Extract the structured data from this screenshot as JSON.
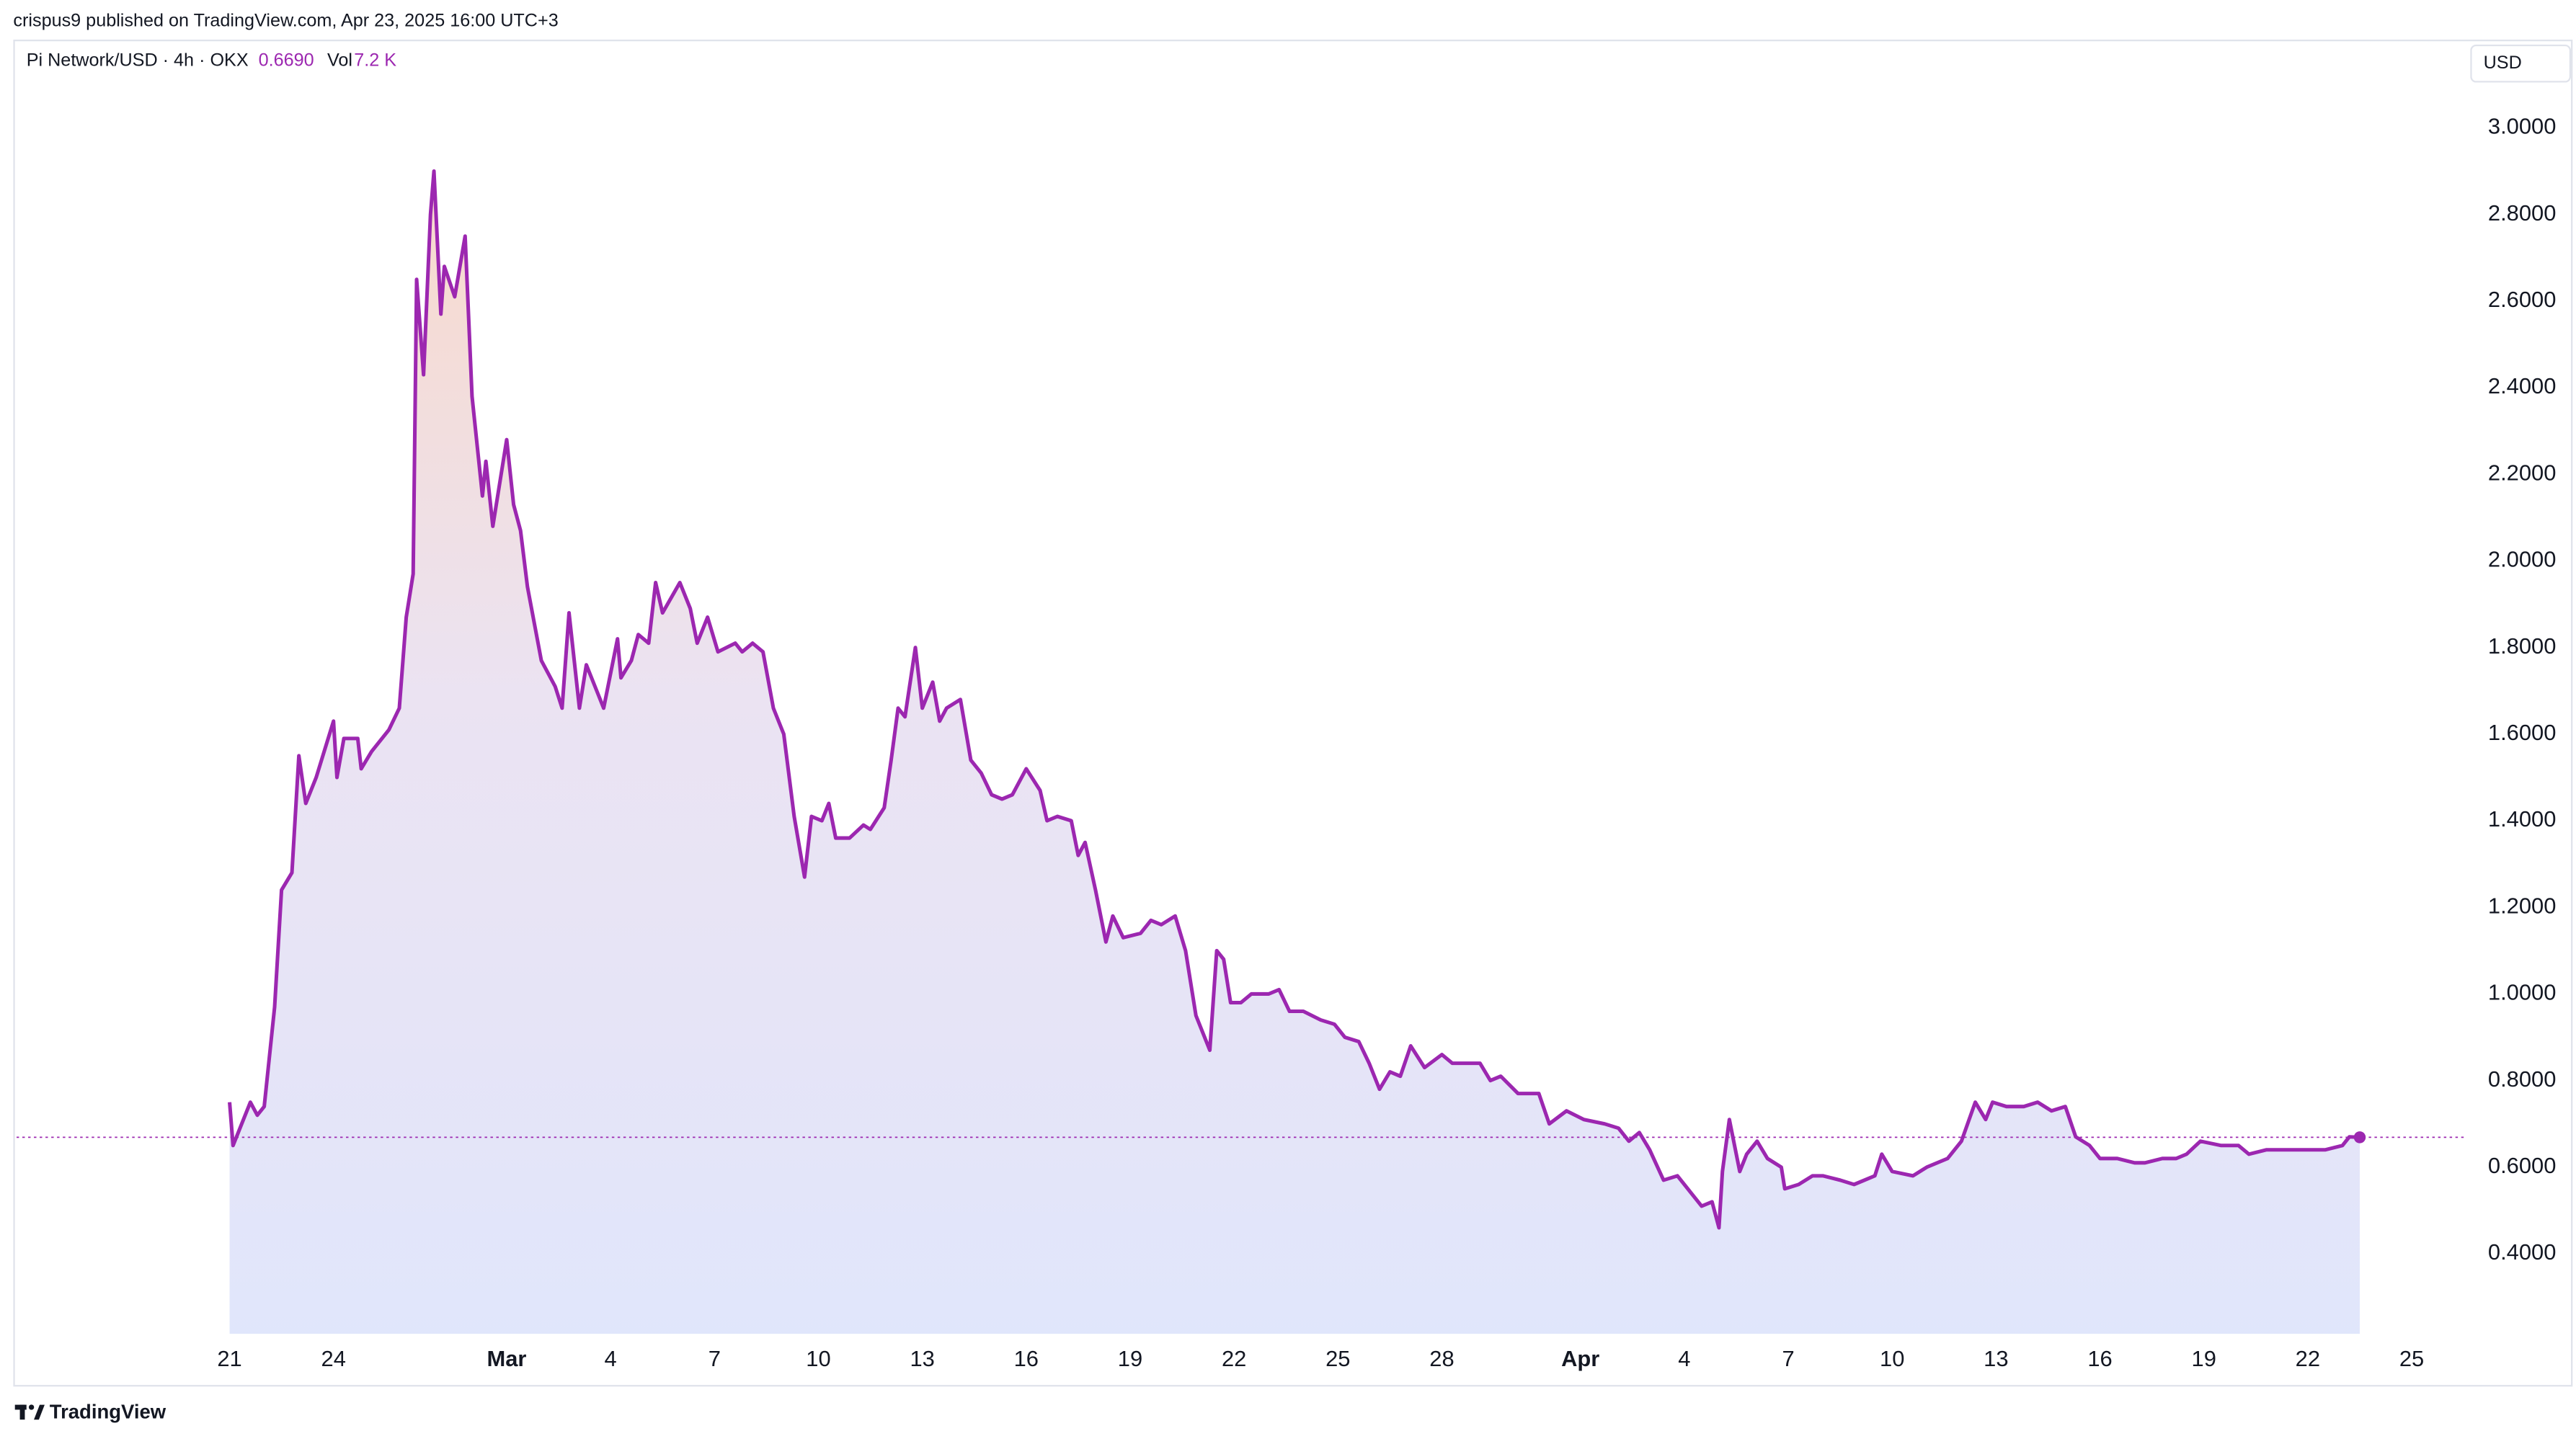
{
  "publisher": "crispus9 published on TradingView.com, Apr 23, 2025 16:00 UTC+3",
  "brand": "TradingView",
  "chart_data": {
    "type": "area",
    "title": "Pi Network/USD · 4h · OKX",
    "price_label": "0.6690",
    "volume_label": "Vol",
    "volume_value": "7.2 K",
    "currency": "USD",
    "color": "#9c27b0",
    "x": [
      0,
      0.1,
      0.6,
      0.8,
      1.0,
      1.3,
      1.5,
      1.8,
      2.0,
      2.2,
      2.5,
      3.0,
      3.1,
      3.3,
      3.7,
      3.8,
      4.1,
      4.6,
      4.9,
      5.1,
      5.3,
      5.4,
      5.6,
      5.8,
      5.9,
      6.1,
      6.2,
      6.5,
      6.8,
      7.0,
      7.3,
      7.4,
      7.6,
      8.0,
      8.2,
      8.4,
      8.6,
      9.0,
      9.4,
      9.6,
      9.8,
      10.1,
      10.3,
      10.6,
      10.8,
      11.2,
      11.3,
      11.6,
      11.8,
      12.1,
      12.3,
      12.5,
      13.0,
      13.3,
      13.5,
      13.8,
      14.1,
      14.6,
      14.8,
      15.1,
      15.4,
      15.7,
      16.0,
      16.3,
      16.6,
      16.8,
      17.1,
      17.3,
      17.5,
      17.9,
      18.3,
      18.5,
      18.9,
      19.1,
      19.3,
      19.5,
      19.8,
      20.0,
      20.3,
      20.5,
      20.7,
      21.1,
      21.4,
      21.7,
      22.0,
      22.3,
      22.6,
      23.0,
      23.4,
      23.6,
      23.9,
      24.3,
      24.5,
      24.7,
      25.0,
      25.3,
      25.5,
      25.8,
      26.3,
      26.6,
      26.9,
      27.3,
      27.6,
      27.9,
      28.3,
      28.5,
      28.7,
      28.9,
      29.2,
      29.5,
      30.0,
      30.3,
      30.6,
      31.0,
      31.5,
      31.9,
      32.2,
      32.6,
      32.9,
      33.2,
      33.5,
      33.8,
      34.1,
      34.5,
      35.0,
      35.3,
      36.1,
      36.4,
      36.7,
      37.2,
      37.8,
      38.1,
      38.6,
      39.1,
      39.7,
      40.1,
      40.4,
      40.7,
      41.0,
      41.4,
      41.8,
      42.2,
      42.5,
      42.8,
      43.0,
      43.1,
      43.3,
      43.6,
      43.8,
      44.1,
      44.4,
      44.8,
      44.9,
      45.3,
      45.7,
      46.0,
      46.5,
      46.9,
      47.2,
      47.5,
      47.7,
      48.0,
      48.6,
      49.0,
      49.6,
      50.0,
      50.4,
      50.7,
      50.9,
      51.3,
      51.8,
      52.2,
      52.6,
      53.0,
      53.3,
      53.7,
      54.0,
      54.5,
      55.0,
      55.3,
      55.8,
      56.2,
      56.5,
      56.9,
      57.5,
      58.0,
      58.3,
      58.8,
      59.4,
      59.9,
      60.5,
      61.0,
      61.2,
      61.5
    ],
    "values": [
      0.75,
      0.65,
      0.75,
      0.72,
      0.74,
      0.97,
      1.24,
      1.28,
      1.55,
      1.44,
      1.5,
      1.63,
      1.5,
      1.59,
      1.59,
      1.52,
      1.56,
      1.61,
      1.66,
      1.87,
      1.97,
      2.65,
      2.43,
      2.8,
      2.9,
      2.57,
      2.68,
      2.61,
      2.75,
      2.38,
      2.15,
      2.23,
      2.08,
      2.28,
      2.13,
      2.07,
      1.94,
      1.77,
      1.71,
      1.66,
      1.88,
      1.66,
      1.76,
      1.7,
      1.66,
      1.82,
      1.73,
      1.77,
      1.83,
      1.81,
      1.95,
      1.88,
      1.95,
      1.89,
      1.81,
      1.87,
      1.79,
      1.81,
      1.79,
      1.81,
      1.79,
      1.66,
      1.6,
      1.41,
      1.27,
      1.41,
      1.4,
      1.44,
      1.36,
      1.36,
      1.39,
      1.38,
      1.43,
      1.54,
      1.66,
      1.64,
      1.8,
      1.66,
      1.72,
      1.63,
      1.66,
      1.68,
      1.54,
      1.51,
      1.46,
      1.45,
      1.46,
      1.52,
      1.47,
      1.4,
      1.41,
      1.4,
      1.32,
      1.35,
      1.24,
      1.12,
      1.18,
      1.13,
      1.14,
      1.17,
      1.16,
      1.18,
      1.1,
      0.95,
      0.87,
      1.1,
      1.08,
      0.98,
      0.98,
      1.0,
      1.0,
      1.01,
      0.96,
      0.96,
      0.94,
      0.93,
      0.9,
      0.89,
      0.84,
      0.78,
      0.82,
      0.81,
      0.88,
      0.83,
      0.86,
      0.84,
      0.84,
      0.8,
      0.81,
      0.77,
      0.77,
      0.7,
      0.73,
      0.71,
      0.7,
      0.69,
      0.66,
      0.68,
      0.64,
      0.57,
      0.58,
      0.54,
      0.51,
      0.52,
      0.46,
      0.59,
      0.71,
      0.59,
      0.63,
      0.66,
      0.62,
      0.6,
      0.55,
      0.56,
      0.58,
      0.58,
      0.57,
      0.56,
      0.57,
      0.58,
      0.63,
      0.59,
      0.58,
      0.6,
      0.62,
      0.66,
      0.75,
      0.71,
      0.75,
      0.74,
      0.74,
      0.75,
      0.73,
      0.74,
      0.67,
      0.65,
      0.62,
      0.62,
      0.61,
      0.61,
      0.62,
      0.62,
      0.63,
      0.66,
      0.65,
      0.65,
      0.63,
      0.64,
      0.64,
      0.64,
      0.64,
      0.65,
      0.67,
      0.669
    ],
    "xlim": [
      -6.15,
      64.5
    ],
    "ylim": [
      0.2,
      3.2
    ],
    "xticks": [
      {
        "value": 0,
        "label": "21"
      },
      {
        "value": 3,
        "label": "24"
      },
      {
        "value": 8,
        "label": "Mar"
      },
      {
        "value": 11,
        "label": "4"
      },
      {
        "value": 14,
        "label": "7"
      },
      {
        "value": 17,
        "label": "10"
      },
      {
        "value": 20,
        "label": "13"
      },
      {
        "value": 23,
        "label": "16"
      },
      {
        "value": 26,
        "label": "19"
      },
      {
        "value": 29,
        "label": "22"
      },
      {
        "value": 32,
        "label": "25"
      },
      {
        "value": 35,
        "label": "28"
      },
      {
        "value": 39,
        "label": "Apr"
      },
      {
        "value": 42,
        "label": "4"
      },
      {
        "value": 45,
        "label": "7"
      },
      {
        "value": 48,
        "label": "10"
      },
      {
        "value": 51,
        "label": "13"
      },
      {
        "value": 54,
        "label": "16"
      },
      {
        "value": 57,
        "label": "19"
      },
      {
        "value": 60,
        "label": "22"
      },
      {
        "value": 63,
        "label": "25"
      }
    ],
    "yticks": [
      {
        "value": 0.4,
        "label": "0.4000"
      },
      {
        "value": 0.6,
        "label": "0.6000"
      },
      {
        "value": 0.8,
        "label": "0.8000"
      },
      {
        "value": 1.0,
        "label": "1.0000"
      },
      {
        "value": 1.2,
        "label": "1.2000"
      },
      {
        "value": 1.4,
        "label": "1.4000"
      },
      {
        "value": 1.6,
        "label": "1.6000"
      },
      {
        "value": 1.8,
        "label": "1.8000"
      },
      {
        "value": 2.0,
        "label": "2.0000"
      },
      {
        "value": 2.2,
        "label": "2.2000"
      },
      {
        "value": 2.4,
        "label": "2.4000"
      },
      {
        "value": 2.6,
        "label": "2.6000"
      },
      {
        "value": 2.8,
        "label": "2.8000"
      },
      {
        "value": 3.0,
        "label": "3.0000"
      }
    ],
    "grid": false
  }
}
